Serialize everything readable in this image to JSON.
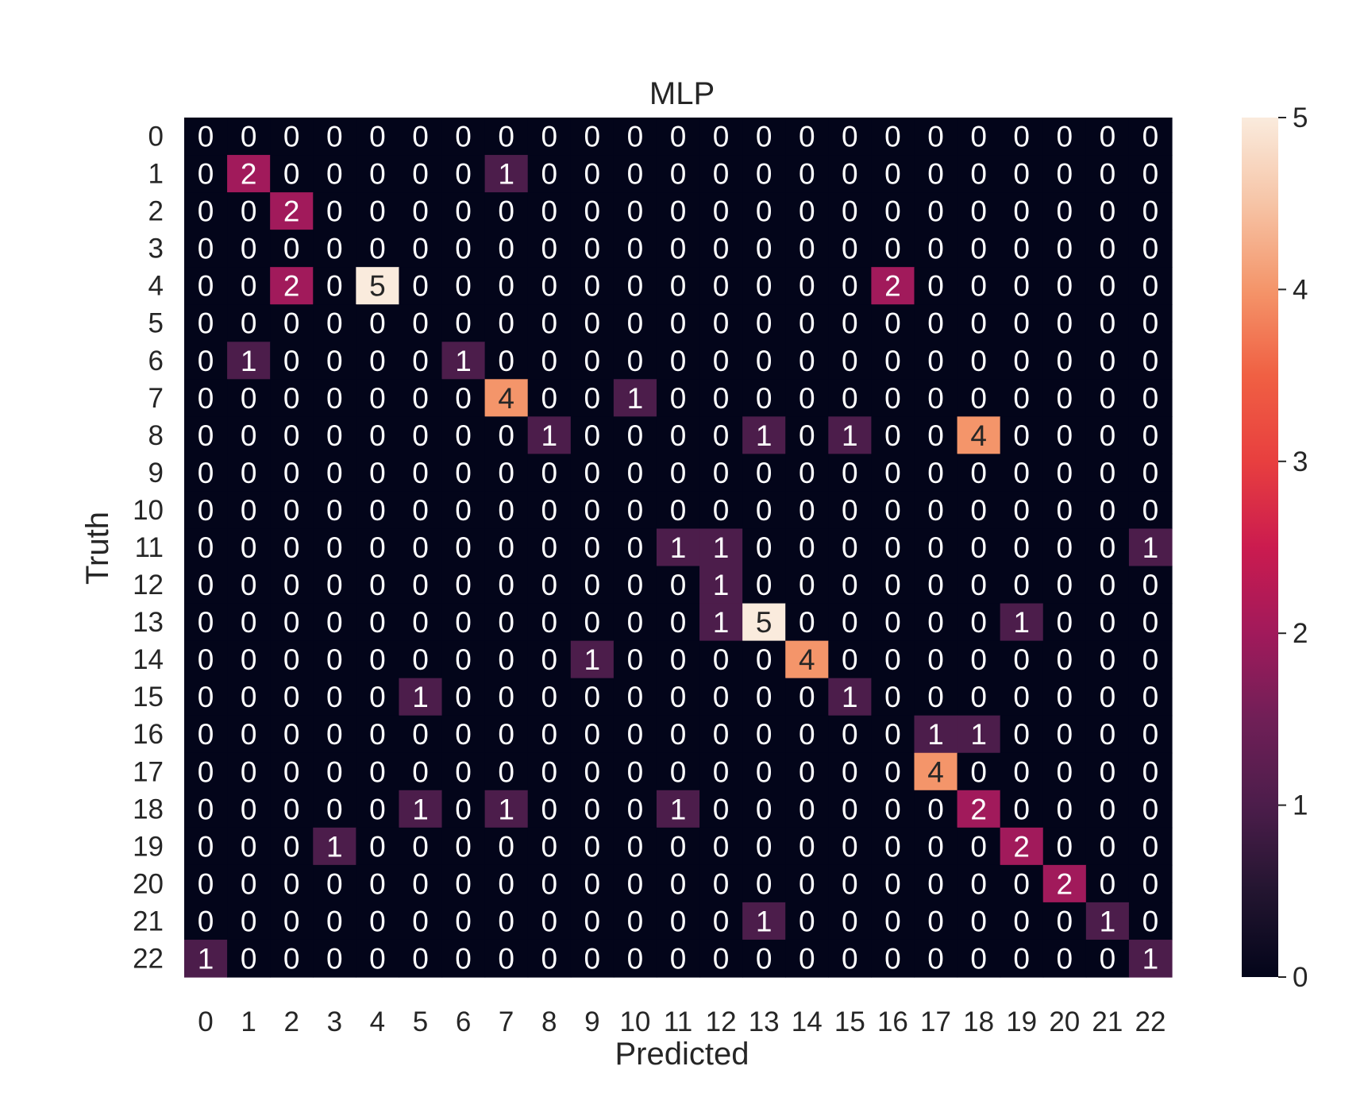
{
  "chart_data": {
    "type": "heatmap",
    "title": "MLP",
    "xlabel": "Predicted",
    "ylabel": "Truth",
    "x_categories": [
      "0",
      "1",
      "2",
      "3",
      "4",
      "5",
      "6",
      "7",
      "8",
      "9",
      "10",
      "11",
      "12",
      "13",
      "14",
      "15",
      "16",
      "17",
      "18",
      "19",
      "20",
      "21",
      "22"
    ],
    "y_categories": [
      "0",
      "1",
      "2",
      "3",
      "4",
      "5",
      "6",
      "7",
      "8",
      "9",
      "10",
      "11",
      "12",
      "13",
      "14",
      "15",
      "16",
      "17",
      "18",
      "19",
      "20",
      "21",
      "22"
    ],
    "values": [
      [
        0,
        0,
        0,
        0,
        0,
        0,
        0,
        0,
        0,
        0,
        0,
        0,
        0,
        0,
        0,
        0,
        0,
        0,
        0,
        0,
        0,
        0,
        0
      ],
      [
        0,
        2,
        0,
        0,
        0,
        0,
        0,
        1,
        0,
        0,
        0,
        0,
        0,
        0,
        0,
        0,
        0,
        0,
        0,
        0,
        0,
        0,
        0
      ],
      [
        0,
        0,
        2,
        0,
        0,
        0,
        0,
        0,
        0,
        0,
        0,
        0,
        0,
        0,
        0,
        0,
        0,
        0,
        0,
        0,
        0,
        0,
        0
      ],
      [
        0,
        0,
        0,
        0,
        0,
        0,
        0,
        0,
        0,
        0,
        0,
        0,
        0,
        0,
        0,
        0,
        0,
        0,
        0,
        0,
        0,
        0,
        0
      ],
      [
        0,
        0,
        2,
        0,
        5,
        0,
        0,
        0,
        0,
        0,
        0,
        0,
        0,
        0,
        0,
        0,
        2,
        0,
        0,
        0,
        0,
        0,
        0
      ],
      [
        0,
        0,
        0,
        0,
        0,
        0,
        0,
        0,
        0,
        0,
        0,
        0,
        0,
        0,
        0,
        0,
        0,
        0,
        0,
        0,
        0,
        0,
        0
      ],
      [
        0,
        1,
        0,
        0,
        0,
        0,
        1,
        0,
        0,
        0,
        0,
        0,
        0,
        0,
        0,
        0,
        0,
        0,
        0,
        0,
        0,
        0,
        0
      ],
      [
        0,
        0,
        0,
        0,
        0,
        0,
        0,
        4,
        0,
        0,
        1,
        0,
        0,
        0,
        0,
        0,
        0,
        0,
        0,
        0,
        0,
        0,
        0
      ],
      [
        0,
        0,
        0,
        0,
        0,
        0,
        0,
        0,
        1,
        0,
        0,
        0,
        0,
        1,
        0,
        1,
        0,
        0,
        4,
        0,
        0,
        0,
        0
      ],
      [
        0,
        0,
        0,
        0,
        0,
        0,
        0,
        0,
        0,
        0,
        0,
        0,
        0,
        0,
        0,
        0,
        0,
        0,
        0,
        0,
        0,
        0,
        0
      ],
      [
        0,
        0,
        0,
        0,
        0,
        0,
        0,
        0,
        0,
        0,
        0,
        0,
        0,
        0,
        0,
        0,
        0,
        0,
        0,
        0,
        0,
        0,
        0
      ],
      [
        0,
        0,
        0,
        0,
        0,
        0,
        0,
        0,
        0,
        0,
        0,
        1,
        1,
        0,
        0,
        0,
        0,
        0,
        0,
        0,
        0,
        0,
        1
      ],
      [
        0,
        0,
        0,
        0,
        0,
        0,
        0,
        0,
        0,
        0,
        0,
        0,
        1,
        0,
        0,
        0,
        0,
        0,
        0,
        0,
        0,
        0,
        0
      ],
      [
        0,
        0,
        0,
        0,
        0,
        0,
        0,
        0,
        0,
        0,
        0,
        0,
        1,
        5,
        0,
        0,
        0,
        0,
        0,
        1,
        0,
        0,
        0
      ],
      [
        0,
        0,
        0,
        0,
        0,
        0,
        0,
        0,
        0,
        1,
        0,
        0,
        0,
        0,
        4,
        0,
        0,
        0,
        0,
        0,
        0,
        0,
        0
      ],
      [
        0,
        0,
        0,
        0,
        0,
        1,
        0,
        0,
        0,
        0,
        0,
        0,
        0,
        0,
        0,
        1,
        0,
        0,
        0,
        0,
        0,
        0,
        0
      ],
      [
        0,
        0,
        0,
        0,
        0,
        0,
        0,
        0,
        0,
        0,
        0,
        0,
        0,
        0,
        0,
        0,
        0,
        1,
        1,
        0,
        0,
        0,
        0
      ],
      [
        0,
        0,
        0,
        0,
        0,
        0,
        0,
        0,
        0,
        0,
        0,
        0,
        0,
        0,
        0,
        0,
        0,
        4,
        0,
        0,
        0,
        0,
        0
      ],
      [
        0,
        0,
        0,
        0,
        0,
        1,
        0,
        1,
        0,
        0,
        0,
        1,
        0,
        0,
        0,
        0,
        0,
        0,
        2,
        0,
        0,
        0,
        0
      ],
      [
        0,
        0,
        0,
        1,
        0,
        0,
        0,
        0,
        0,
        0,
        0,
        0,
        0,
        0,
        0,
        0,
        0,
        0,
        0,
        2,
        0,
        0,
        0
      ],
      [
        0,
        0,
        0,
        0,
        0,
        0,
        0,
        0,
        0,
        0,
        0,
        0,
        0,
        0,
        0,
        0,
        0,
        0,
        0,
        0,
        2,
        0,
        0
      ],
      [
        0,
        0,
        0,
        0,
        0,
        0,
        0,
        0,
        0,
        0,
        0,
        0,
        0,
        1,
        0,
        0,
        0,
        0,
        0,
        0,
        0,
        1,
        0
      ],
      [
        1,
        0,
        0,
        0,
        0,
        0,
        0,
        0,
        0,
        0,
        0,
        0,
        0,
        0,
        0,
        0,
        0,
        0,
        0,
        0,
        0,
        0,
        1
      ]
    ],
    "colorbar": {
      "min": 0,
      "max": 5,
      "ticks": [
        0,
        1,
        2,
        3,
        4,
        5
      ],
      "colormap": "rocket"
    },
    "grid": false
  }
}
